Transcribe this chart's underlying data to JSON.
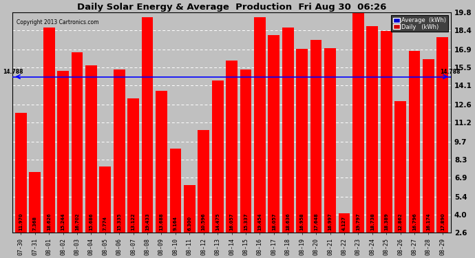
{
  "title": "Daily Solar Energy & Average  Production  Fri Aug 30  06:26",
  "copyright": "Copyright 2013 Cartronics.com",
  "average_value": 14.788,
  "bar_color": "#ff0000",
  "average_line_color": "#0000ff",
  "background_color": "#c0c0c0",
  "plot_background": "#c0c0c0",
  "categories": [
    "07-30",
    "07-31",
    "08-01",
    "08-02",
    "08-03",
    "08-04",
    "08-05",
    "08-06",
    "08-07",
    "08-08",
    "08-09",
    "08-10",
    "08-11",
    "08-12",
    "08-13",
    "08-14",
    "08-15",
    "08-16",
    "08-17",
    "08-18",
    "08-19",
    "08-20",
    "08-21",
    "08-22",
    "08-23",
    "08-24",
    "08-25",
    "08-26",
    "08-27",
    "08-28",
    "08-29"
  ],
  "values": [
    11.97,
    7.368,
    18.626,
    15.244,
    16.702,
    15.686,
    7.774,
    15.335,
    13.122,
    19.433,
    13.688,
    9.164,
    6.3,
    10.596,
    14.475,
    16.057,
    15.337,
    19.454,
    18.057,
    18.636,
    16.958,
    17.648,
    16.997,
    4.127,
    19.797,
    18.738,
    18.389,
    12.862,
    16.796,
    16.174,
    17.89
  ],
  "ylim": [
    2.6,
    19.8
  ],
  "yticks": [
    2.6,
    4.0,
    5.4,
    6.9,
    8.3,
    9.7,
    11.2,
    12.6,
    14.1,
    15.5,
    16.9,
    18.4,
    19.8
  ],
  "grid_color": "#ffffff",
  "legend_avg_bg": "#0000cc",
  "legend_daily_bg": "#cc0000",
  "legend_text_color": "#ffffff"
}
